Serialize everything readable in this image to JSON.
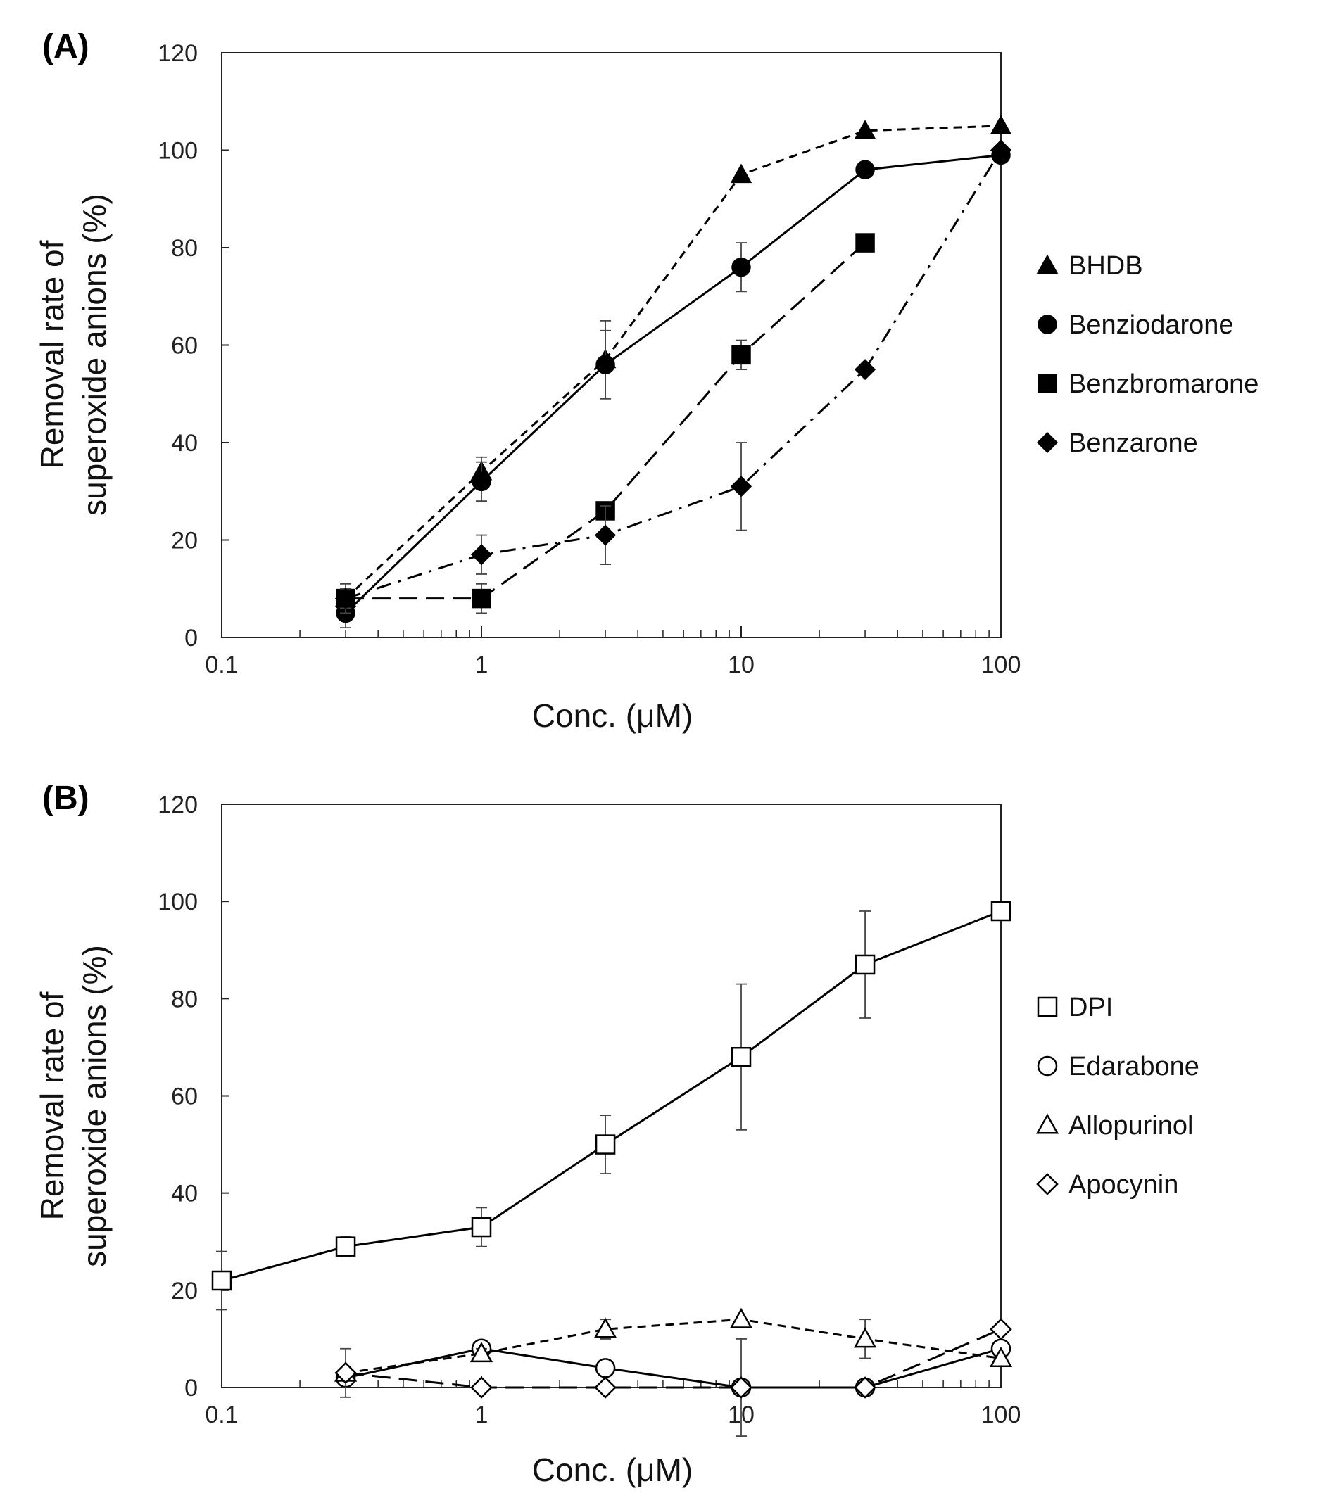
{
  "chart_data": [
    {
      "panel_label": "(A)",
      "type": "line",
      "xscale": "log",
      "xlim": [
        0.1,
        100
      ],
      "ylim": [
        0,
        120
      ],
      "xticks": [
        "0.1",
        "1",
        "10",
        "100"
      ],
      "yticks": [
        "0",
        "20",
        "40",
        "60",
        "80",
        "100",
        "120"
      ],
      "xlabel": "Conc. (μM)",
      "ylabel_line1": "Removal rate of",
      "ylabel_line2": "superoxide anions (%)",
      "legend_position": "right",
      "series": [
        {
          "name": "BHDB",
          "marker": "triangle-filled",
          "dash": "short",
          "x": [
            0.3,
            1,
            3,
            10,
            30,
            100
          ],
          "y": [
            8,
            34,
            57,
            95,
            104,
            105
          ],
          "err": [
            2,
            3,
            8,
            0,
            0,
            0
          ]
        },
        {
          "name": "Benziodarone",
          "marker": "circle-filled",
          "dash": "solid",
          "x": [
            0.3,
            1,
            3,
            10,
            30,
            100
          ],
          "y": [
            5,
            32,
            56,
            76,
            96,
            99
          ],
          "err": [
            3,
            4,
            7,
            5,
            0,
            0
          ]
        },
        {
          "name": "Benzbromarone",
          "marker": "square-filled",
          "dash": "long",
          "x": [
            0.3,
            1,
            3,
            10,
            30
          ],
          "y": [
            8,
            8,
            26,
            58,
            81
          ],
          "err": [
            3,
            3,
            0,
            3,
            0
          ]
        },
        {
          "name": "Benzarone",
          "marker": "diamond-filled",
          "dash": "dashdot",
          "x": [
            0.3,
            1,
            3,
            10,
            30,
            100
          ],
          "y": [
            8,
            17,
            21,
            31,
            55,
            100
          ],
          "err": [
            2,
            4,
            6,
            9,
            0,
            0
          ]
        }
      ]
    },
    {
      "panel_label": "(B)",
      "type": "line",
      "xscale": "log",
      "xlim": [
        0.1,
        100
      ],
      "ylim": [
        0,
        120
      ],
      "xticks": [
        "0.1",
        "1",
        "10",
        "100"
      ],
      "yticks": [
        "0",
        "20",
        "40",
        "60",
        "80",
        "100",
        "120"
      ],
      "xlabel": "Conc. (μM)",
      "ylabel_line1": "Removal rate of",
      "ylabel_line2": "superoxide anions (%)",
      "legend_position": "right",
      "series": [
        {
          "name": "DPI",
          "marker": "square-open",
          "dash": "solid",
          "x": [
            0.1,
            0.3,
            1,
            3,
            10,
            30,
            100
          ],
          "y": [
            22,
            29,
            33,
            50,
            68,
            87,
            98
          ],
          "err": [
            6,
            2,
            4,
            6,
            15,
            11,
            0
          ]
        },
        {
          "name": "Edarabone",
          "marker": "circle-open",
          "dash": "solid",
          "x": [
            0.3,
            1,
            3,
            10,
            30,
            100
          ],
          "y": [
            2,
            8,
            4,
            0,
            0,
            8
          ],
          "err": [
            1,
            1,
            1,
            0,
            0,
            0
          ]
        },
        {
          "name": "Allopurinol",
          "marker": "triangle-open",
          "dash": "short",
          "x": [
            0.3,
            1,
            3,
            10,
            30,
            100
          ],
          "y": [
            3,
            7,
            12,
            14,
            10,
            6
          ],
          "err": [
            5,
            1,
            2,
            0,
            4,
            0
          ]
        },
        {
          "name": "Apocynin",
          "marker": "diamond-open",
          "dash": "long",
          "x": [
            0.3,
            1,
            3,
            10,
            30,
            100
          ],
          "y": [
            3,
            0,
            0,
            0,
            0,
            12
          ],
          "err": [
            0,
            0,
            0,
            10,
            0,
            0
          ]
        }
      ]
    }
  ]
}
